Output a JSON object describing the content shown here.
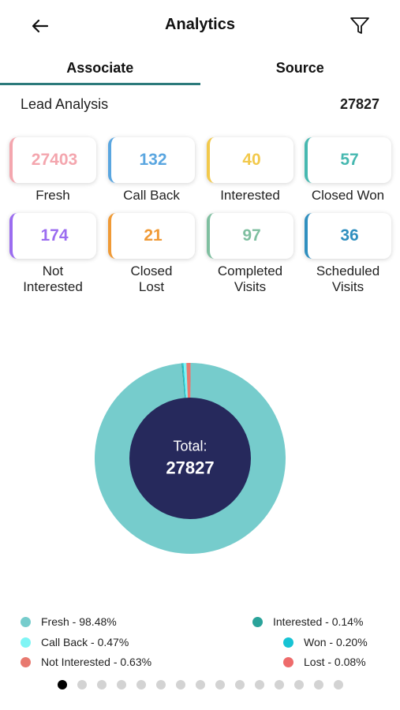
{
  "header": {
    "title": "Analytics",
    "back_icon": "arrow-left-icon",
    "filter_icon": "filter-icon"
  },
  "tabs": [
    {
      "label": "Associate",
      "active": true
    },
    {
      "label": "Source",
      "active": false
    }
  ],
  "lead_analysis": {
    "label": "Lead Analysis",
    "total": "27827"
  },
  "stats": [
    {
      "value": "27403",
      "label": "Fresh",
      "color": "#f4a6ae",
      "border": "#f4a6ae"
    },
    {
      "value": "132",
      "label": "Call Back",
      "color": "#5aa6e0",
      "border": "#5aa6e0"
    },
    {
      "value": "40",
      "label": "Interested",
      "color": "#f2c94c",
      "border": "#f2c94c"
    },
    {
      "value": "57",
      "label": "Closed Won",
      "color": "#46b8b0",
      "border": "#46b8b0"
    },
    {
      "value": "174",
      "label": "Not Interested",
      "color": "#9b6cf0",
      "border": "#9b6cf0"
    },
    {
      "value": "21",
      "label": "Closed Lost",
      "color": "#f09a36",
      "border": "#f09a36"
    },
    {
      "value": "97",
      "label": "Completed Visits",
      "color": "#7fbfa0",
      "border": "#7fbfa0"
    },
    {
      "value": "36",
      "label": "Scheduled Visits",
      "color": "#2f8fbf",
      "border": "#2f8fbf"
    }
  ],
  "chart_data": {
    "type": "pie",
    "center_label": "Total:",
    "center_value": "27827",
    "slices": [
      {
        "name": "Fresh",
        "percent": 98.48,
        "color": "#76cccc"
      },
      {
        "name": "Call Back",
        "percent": 0.47,
        "color": "#7ff5f5"
      },
      {
        "name": "Not Interested",
        "percent": 0.63,
        "color": "#e8796f"
      },
      {
        "name": "Interested",
        "percent": 0.14,
        "color": "#2aa39a"
      },
      {
        "name": "Won",
        "percent": 0.2,
        "color": "#17c3d4"
      },
      {
        "name": "Lost",
        "percent": 0.08,
        "color": "#ee6b6b"
      }
    ]
  },
  "legend": [
    {
      "text": "Fresh - 98.48%",
      "color": "#76cccc"
    },
    {
      "text": "Interested - 0.14%",
      "color": "#2aa39a"
    },
    {
      "text": "Call Back - 0.47%",
      "color": "#7ff5f5"
    },
    {
      "text": "Won - 0.20%",
      "color": "#17c3d4"
    },
    {
      "text": "Not Interested - 0.63%",
      "color": "#e8796f"
    },
    {
      "text": "Lost - 0.08%",
      "color": "#ee6b6b"
    }
  ],
  "pager": {
    "count": 15,
    "active_index": 0
  },
  "colors": {
    "donut_hole": "#26295c",
    "tab_indicator": "#2c7a7b"
  }
}
